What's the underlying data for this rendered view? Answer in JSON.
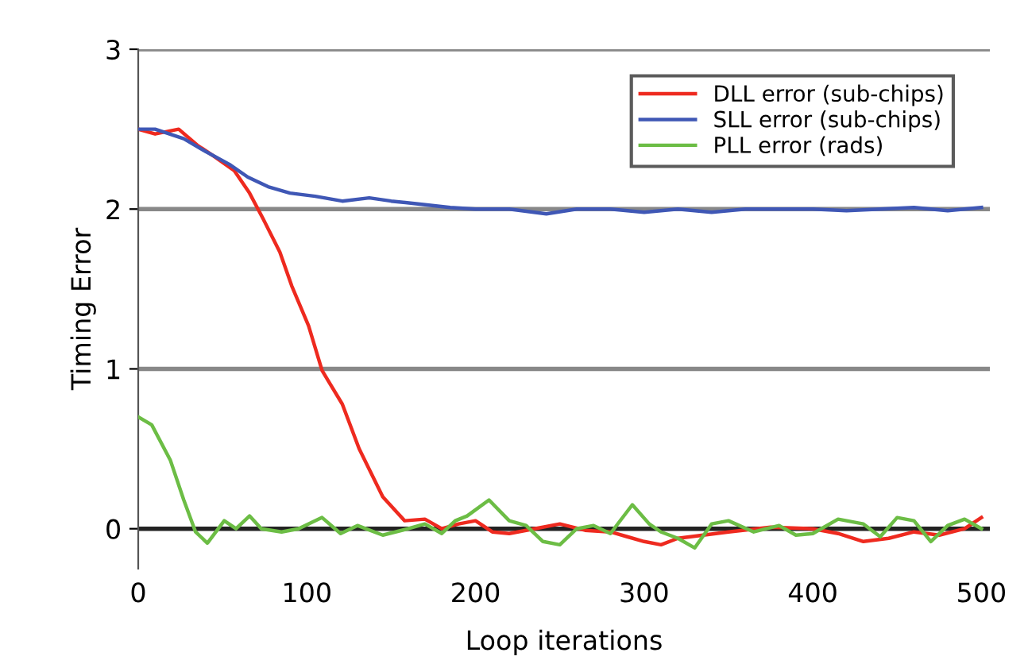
{
  "chart_data": {
    "type": "line",
    "xlabel": "Loop iterations",
    "ylabel": "Timing Error",
    "xlim": [
      0,
      505
    ],
    "ylim": [
      -0.25,
      3
    ],
    "xticks": [
      0,
      100,
      200,
      300,
      400,
      500
    ],
    "yticks": [
      0,
      1,
      2,
      3
    ],
    "grid": "y",
    "legend": "top right",
    "marker": "none",
    "line_style": "solid",
    "series": [
      {
        "name": "DLL error (sub-chips)",
        "color": "#ee2a1f",
        "x": [
          0,
          10,
          24,
          35,
          45,
          57,
          66,
          74,
          84,
          91,
          101,
          109,
          113,
          121,
          131,
          145,
          158,
          170,
          180,
          190,
          200,
          210,
          220,
          235,
          250,
          265,
          280,
          290,
          300,
          310,
          320,
          335,
          350,
          375,
          400,
          415,
          430,
          445,
          460,
          475,
          490,
          500
        ],
        "values": [
          2.5,
          2.47,
          2.5,
          2.4,
          2.33,
          2.24,
          2.1,
          1.94,
          1.73,
          1.52,
          1.27,
          0.99,
          0.92,
          0.78,
          0.5,
          0.2,
          0.05,
          0.06,
          0.0,
          0.03,
          0.05,
          -0.02,
          -0.03,
          0.0,
          0.03,
          -0.01,
          -0.02,
          -0.05,
          -0.08,
          -0.1,
          -0.06,
          -0.04,
          -0.02,
          0.01,
          0.0,
          -0.03,
          -0.08,
          -0.06,
          -0.02,
          -0.04,
          0.0,
          0.07
        ]
      },
      {
        "name": "SLL error (sub-chips)",
        "color": "#3f57b5",
        "x": [
          0,
          10,
          27,
          40,
          54,
          65,
          77,
          90,
          105,
          121,
          137,
          150,
          168,
          185,
          200,
          220,
          242,
          260,
          280,
          300,
          320,
          340,
          360,
          380,
          400,
          420,
          440,
          460,
          480,
          500
        ],
        "values": [
          2.5,
          2.5,
          2.44,
          2.36,
          2.28,
          2.2,
          2.14,
          2.1,
          2.08,
          2.05,
          2.07,
          2.05,
          2.03,
          2.01,
          2.0,
          2.0,
          1.97,
          2.0,
          2.0,
          1.98,
          2.0,
          1.98,
          2.0,
          2.0,
          2.0,
          1.99,
          2.0,
          2.01,
          1.99,
          2.01
        ]
      },
      {
        "name": "PLL error (rads)",
        "color": "#6cbd45",
        "x": [
          0,
          8,
          19,
          27,
          34,
          41,
          51,
          58,
          66,
          73,
          85,
          95,
          109,
          120,
          130,
          145,
          160,
          170,
          180,
          188,
          195,
          208,
          220,
          230,
          240,
          250,
          260,
          270,
          280,
          293,
          303,
          310,
          320,
          330,
          340,
          350,
          365,
          380,
          390,
          400,
          415,
          430,
          440,
          450,
          460,
          470,
          480,
          490,
          500
        ],
        "values": [
          0.7,
          0.65,
          0.43,
          0.18,
          -0.02,
          -0.09,
          0.05,
          0.0,
          0.08,
          0.0,
          -0.02,
          0.0,
          0.07,
          -0.03,
          0.02,
          -0.04,
          0.0,
          0.03,
          -0.03,
          0.05,
          0.08,
          0.18,
          0.05,
          0.02,
          -0.08,
          -0.1,
          0.0,
          0.02,
          -0.03,
          0.15,
          0.03,
          -0.02,
          -0.06,
          -0.12,
          0.03,
          0.05,
          -0.02,
          0.02,
          -0.04,
          -0.03,
          0.06,
          0.03,
          -0.05,
          0.07,
          0.05,
          -0.08,
          0.02,
          0.06,
          0.0
        ]
      }
    ]
  }
}
